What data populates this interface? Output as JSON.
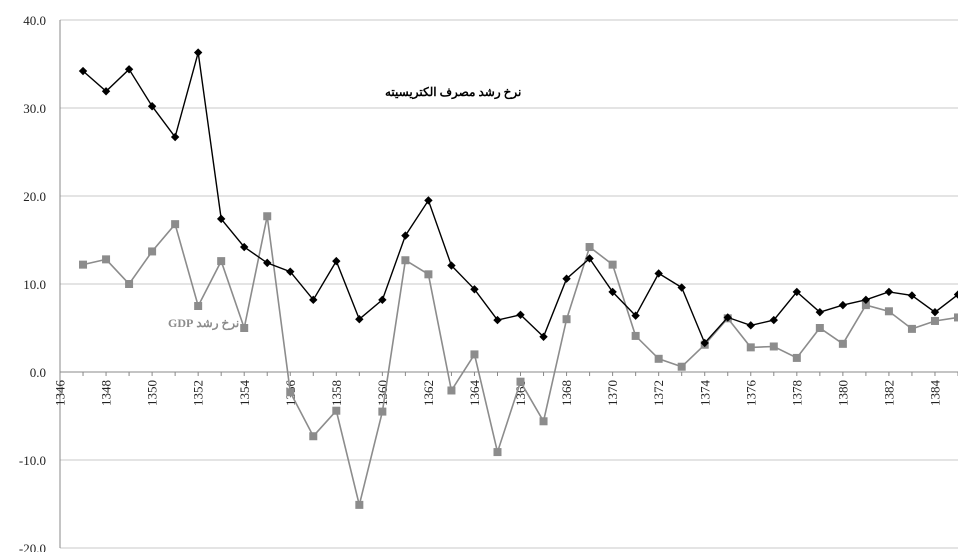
{
  "chart_data": {
    "type": "line",
    "ylim": [
      -20,
      40
    ],
    "xlim": [
      1346,
      1385
    ],
    "y_ticks": [
      "40.0",
      "30.0",
      "20.0",
      "10.0",
      "0.0",
      "-10.0",
      "-20.0"
    ],
    "x_ticks": [
      "1346",
      "1348",
      "1350",
      "1352",
      "1354",
      "1356",
      "1358",
      "1360",
      "1362",
      "1364",
      "1366",
      "1368",
      "1370",
      "1372",
      "1374",
      "1376",
      "1378",
      "1380",
      "1382",
      "1384"
    ],
    "grid": "horizontal",
    "x": [
      1347,
      1348,
      1349,
      1350,
      1351,
      1352,
      1353,
      1354,
      1355,
      1356,
      1357,
      1358,
      1359,
      1360,
      1361,
      1362,
      1363,
      1364,
      1365,
      1366,
      1367,
      1368,
      1369,
      1370,
      1371,
      1372,
      1373,
      1374,
      1375,
      1376,
      1377,
      1378,
      1379,
      1380,
      1381,
      1382,
      1383,
      1384,
      1385
    ],
    "series": [
      {
        "name": "نرخ رشد مصرف الکتریسیته",
        "color": "#000000",
        "marker": "diamond",
        "values": [
          34.2,
          31.9,
          34.4,
          30.2,
          26.7,
          36.3,
          17.4,
          14.2,
          12.4,
          11.4,
          8.2,
          12.6,
          6.0,
          8.2,
          15.5,
          19.5,
          12.1,
          9.4,
          5.9,
          6.5,
          4.0,
          10.6,
          12.9,
          9.1,
          6.4,
          11.2,
          9.6,
          3.3,
          6.2,
          5.3,
          5.9,
          9.1,
          6.8,
          7.6,
          8.2,
          9.1,
          8.7,
          6.8,
          8.8
        ]
      },
      {
        "name": "نرخ رشد GDP",
        "color": "#8c8c8c",
        "marker": "square",
        "values": [
          12.2,
          12.8,
          10.0,
          13.7,
          16.8,
          7.5,
          12.6,
          5.0,
          17.7,
          -2.3,
          -7.3,
          -4.4,
          -15.1,
          -4.5,
          12.7,
          11.1,
          -2.1,
          2.0,
          -9.1,
          -1.1,
          -5.6,
          6.0,
          14.2,
          12.2,
          4.1,
          1.5,
          0.6,
          3.1,
          6.1,
          2.8,
          2.9,
          1.6,
          5.0,
          3.2,
          7.6,
          6.9,
          4.9,
          5.8,
          6.2
        ]
      }
    ]
  }
}
